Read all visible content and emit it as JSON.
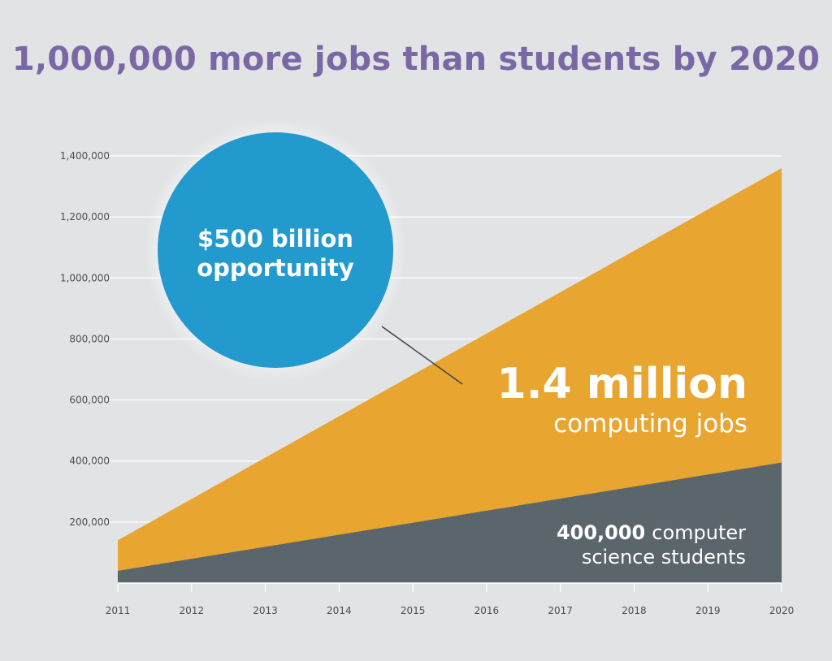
{
  "title": "1,000,000 more jobs than students by 2020",
  "chart_data": {
    "type": "area",
    "title": "1,000,000 more jobs than students by 2020",
    "x": [
      2011,
      2012,
      2013,
      2014,
      2015,
      2016,
      2017,
      2018,
      2019,
      2020
    ],
    "ylim": [
      0,
      1400000
    ],
    "yticks": [
      200000,
      400000,
      600000,
      800000,
      1000000,
      1200000,
      1400000
    ],
    "ytick_labels": [
      "200,000",
      "400,000",
      "600,000",
      "800,000",
      "1,000,000",
      "1,200,000",
      "1,400,000"
    ],
    "grid": true,
    "series": [
      {
        "name": "computing jobs",
        "color": "#e8a530",
        "start": 140000,
        "end": 1360000,
        "values": [
          140000,
          275556,
          411111,
          546667,
          682222,
          817778,
          953333,
          1088889,
          1224444,
          1360000
        ]
      },
      {
        "name": "computer science students",
        "color": "#5b666c",
        "start": 40000,
        "end": 395000,
        "values": [
          40000,
          79444,
          118889,
          158333,
          197778,
          237222,
          276667,
          316111,
          355556,
          395000
        ]
      }
    ],
    "annotations": {
      "bubble_line1": "$500 billion",
      "bubble_line2": "opportunity",
      "bubble_color": "#229acd",
      "jobs_big": "1.4 million",
      "jobs_small": "computing jobs",
      "students_big": "400,000",
      "students_small": "computer",
      "students_line2": "science students"
    }
  }
}
